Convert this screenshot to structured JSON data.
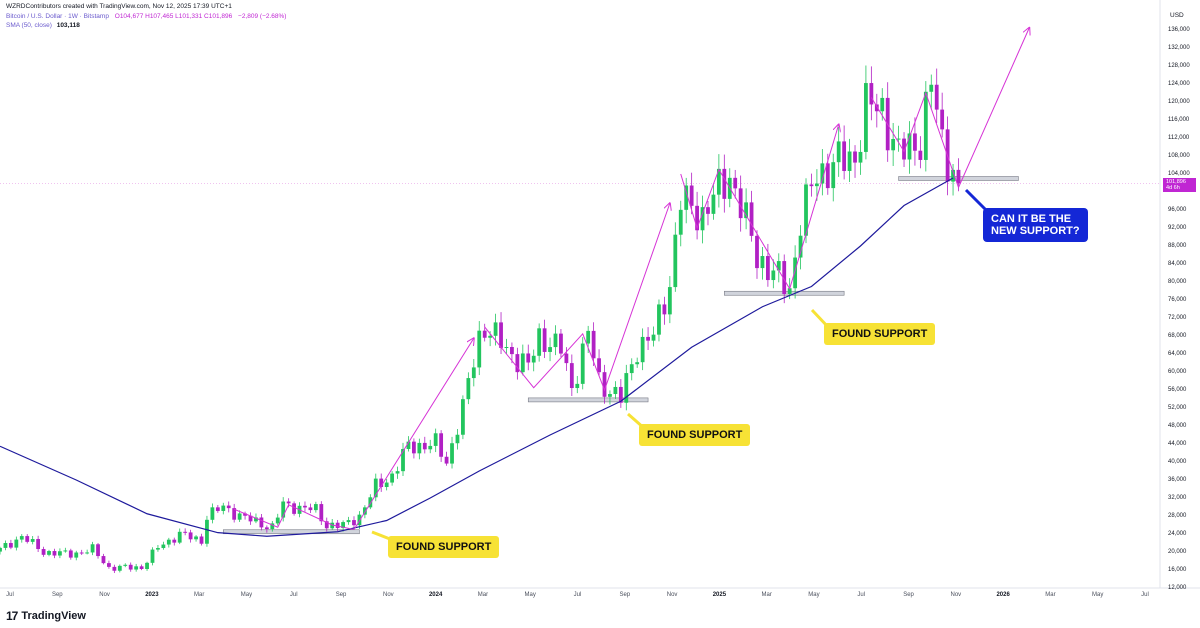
{
  "header": {
    "credit": "WZRDContributors created with TradingView.com, Nov 12, 2025 17:39 UTC+1",
    "symbol": "Bitcoin / U.S. Dollar · 1W · Bitstamp",
    "ohlc": "O104,677 H107,465 L101,331 C101,896",
    "change": "−2,809 (−2.68%)",
    "sma_label": "SMA (50, close)",
    "sma_value": "103,118"
  },
  "axis": {
    "currency": "USD",
    "y_ticks": [
      "136,000",
      "132,000",
      "128,000",
      "124,000",
      "120,000",
      "116,000",
      "112,000",
      "108,000",
      "104,000",
      "96,000",
      "92,000",
      "88,000",
      "84,000",
      "80,000",
      "76,000",
      "72,000",
      "68,000",
      "64,000",
      "60,000",
      "56,000",
      "52,000",
      "48,000",
      "44,000",
      "40,000",
      "36,000",
      "32,000",
      "28,000",
      "24,000",
      "20,000",
      "16,000",
      "12,000"
    ],
    "x_ticks": [
      {
        "label": "Jul",
        "year": false
      },
      {
        "label": "Sep",
        "year": false
      },
      {
        "label": "Nov",
        "year": false
      },
      {
        "label": "2023",
        "year": true
      },
      {
        "label": "Mar",
        "year": false
      },
      {
        "label": "May",
        "year": false
      },
      {
        "label": "Jul",
        "year": false
      },
      {
        "label": "Sep",
        "year": false
      },
      {
        "label": "Nov",
        "year": false
      },
      {
        "label": "2024",
        "year": true
      },
      {
        "label": "Mar",
        "year": false
      },
      {
        "label": "May",
        "year": false
      },
      {
        "label": "Jul",
        "year": false
      },
      {
        "label": "Sep",
        "year": false
      },
      {
        "label": "Nov",
        "year": false
      },
      {
        "label": "2025",
        "year": true
      },
      {
        "label": "Mar",
        "year": false
      },
      {
        "label": "May",
        "year": false
      },
      {
        "label": "Jul",
        "year": false
      },
      {
        "label": "Sep",
        "year": false
      },
      {
        "label": "Nov",
        "year": false
      },
      {
        "label": "2026",
        "year": true
      },
      {
        "label": "Mar",
        "year": false
      },
      {
        "label": "May",
        "year": false
      },
      {
        "label": "Jul",
        "year": false
      }
    ],
    "price_tag": [
      "101,896",
      "4d 6h"
    ]
  },
  "annotations": {
    "support_1": "FOUND SUPPORT",
    "support_2": "FOUND SUPPORT",
    "support_3": "FOUND SUPPORT",
    "question_line1": "CAN IT BE THE",
    "question_line2": "NEW SUPPORT?"
  },
  "brand": {
    "name": "TradingView"
  },
  "colors": {
    "up": "#22c55e",
    "down": "#b120c4",
    "sma": "#1e1a9c",
    "projection": "#d633d6",
    "callout_yellow": "#f7e235",
    "callout_blue": "#1427d6"
  },
  "chart_data": {
    "type": "candlestick",
    "interval": "1W",
    "ylim": [
      12000,
      136000
    ],
    "y_scale": "linear",
    "x_range": [
      "2022-06-27",
      "2026-07-27"
    ],
    "last_close": 101896,
    "candles_anchor_close": [
      [
        "2022-06-27",
        20500
      ],
      [
        "2022-07-25",
        23500
      ],
      [
        "2022-08-22",
        20000
      ],
      [
        "2022-09-26",
        19500
      ],
      [
        "2022-10-24",
        20600
      ],
      [
        "2022-11-14",
        16500
      ],
      [
        "2022-12-26",
        16600
      ],
      [
        "2023-01-16",
        21000
      ],
      [
        "2023-02-13",
        24000
      ],
      [
        "2023-03-13",
        22500
      ],
      [
        "2023-03-20",
        28000
      ],
      [
        "2023-04-10",
        30000
      ],
      [
        "2023-05-08",
        27500
      ],
      [
        "2023-06-12",
        25500
      ],
      [
        "2023-06-26",
        30500
      ],
      [
        "2023-08-07",
        29300
      ],
      [
        "2023-08-21",
        26000
      ],
      [
        "2023-09-11",
        25800
      ],
      [
        "2023-10-02",
        28000
      ],
      [
        "2023-10-23",
        34500
      ],
      [
        "2023-11-13",
        37000
      ],
      [
        "2023-12-04",
        43500
      ],
      [
        "2024-01-08",
        44000
      ],
      [
        "2024-01-22",
        40000
      ],
      [
        "2024-02-12",
        52000
      ],
      [
        "2024-03-04",
        68000
      ],
      [
        "2024-03-11",
        70000
      ],
      [
        "2024-04-15",
        64000
      ],
      [
        "2024-05-06",
        61000
      ],
      [
        "2024-05-20",
        68000
      ],
      [
        "2024-06-17",
        65000
      ],
      [
        "2024-07-01",
        56500
      ],
      [
        "2024-07-22",
        68500
      ],
      [
        "2024-08-05",
        58000
      ],
      [
        "2024-09-02",
        54000
      ],
      [
        "2024-09-23",
        65500
      ],
      [
        "2024-10-14",
        68000
      ],
      [
        "2024-11-04",
        80000
      ],
      [
        "2024-11-18",
        98000
      ],
      [
        "2024-12-16",
        95000
      ],
      [
        "2025-01-20",
        104000
      ],
      [
        "2025-02-24",
        86000
      ],
      [
        "2025-03-10",
        83000
      ],
      [
        "2025-04-07",
        78500
      ],
      [
        "2025-04-21",
        93500
      ],
      [
        "2025-05-12",
        104000
      ],
      [
        "2025-06-02",
        106000
      ],
      [
        "2025-06-30",
        108000
      ],
      [
        "2025-07-14",
        119000
      ],
      [
        "2025-08-04",
        118500
      ],
      [
        "2025-08-25",
        108000
      ],
      [
        "2025-09-22",
        112000
      ],
      [
        "2025-10-06",
        124000
      ],
      [
        "2025-10-20",
        111000
      ],
      [
        "2025-11-10",
        101896
      ]
    ],
    "series": [
      {
        "name": "SMA (50, close)",
        "points": [
          [
            "2022-06-27",
            43500
          ],
          [
            "2022-10-03",
            36000
          ],
          [
            "2023-01-02",
            28500
          ],
          [
            "2023-04-03",
            24300
          ],
          [
            "2023-06-05",
            23500
          ],
          [
            "2023-09-04",
            24500
          ],
          [
            "2023-11-06",
            27000
          ],
          [
            "2024-01-01",
            32000
          ],
          [
            "2024-03-04",
            38000
          ],
          [
            "2024-06-03",
            46000
          ],
          [
            "2024-09-02",
            53500
          ],
          [
            "2024-12-02",
            65500
          ],
          [
            "2025-03-03",
            74500
          ],
          [
            "2025-05-05",
            79000
          ],
          [
            "2025-07-07",
            88000
          ],
          [
            "2025-09-01",
            97000
          ],
          [
            "2025-11-03",
            103118
          ]
        ]
      }
    ],
    "support_zones": [
      {
        "start": "2023-04-10",
        "end": "2023-10-02",
        "price": 24500,
        "label": "FOUND SUPPORT"
      },
      {
        "start": "2024-05-06",
        "end": "2024-10-07",
        "price": 53800,
        "label": "FOUND SUPPORT"
      },
      {
        "start": "2025-01-13",
        "end": "2025-06-16",
        "price": 77500,
        "label": "FOUND SUPPORT"
      },
      {
        "start": "2025-08-25",
        "end": "2026-01-26",
        "price": 103000,
        "label": "CAN IT BE THE NEW SUPPORT?"
      }
    ],
    "projection_paths": [
      [
        [
          "2023-04-24",
          29500
        ],
        [
          "2023-06-19",
          25500
        ],
        [
          "2023-07-03",
          30500
        ],
        [
          "2023-08-28",
          26000
        ],
        [
          "2023-09-25",
          25000
        ],
        [
          "2024-02-26",
          67500
        ]
      ],
      [
        [
          "2024-03-11",
          70000
        ],
        [
          "2024-05-13",
          56500
        ],
        [
          "2024-07-15",
          68500
        ],
        [
          "2024-08-12",
          56000
        ],
        [
          "2024-11-04",
          97500
        ]
      ],
      [
        [
          "2024-11-18",
          104000
        ],
        [
          "2024-12-09",
          92000
        ],
        [
          "2025-01-06",
          105000
        ],
        [
          "2025-04-07",
          78500
        ],
        [
          "2025-06-09",
          115000
        ]
      ],
      [
        [
          "2025-07-21",
          121000
        ],
        [
          "2025-09-01",
          109000
        ],
        [
          "2025-09-29",
          122000
        ],
        [
          "2025-11-10",
          101000
        ],
        [
          "2026-02-09",
          136500
        ]
      ]
    ]
  }
}
